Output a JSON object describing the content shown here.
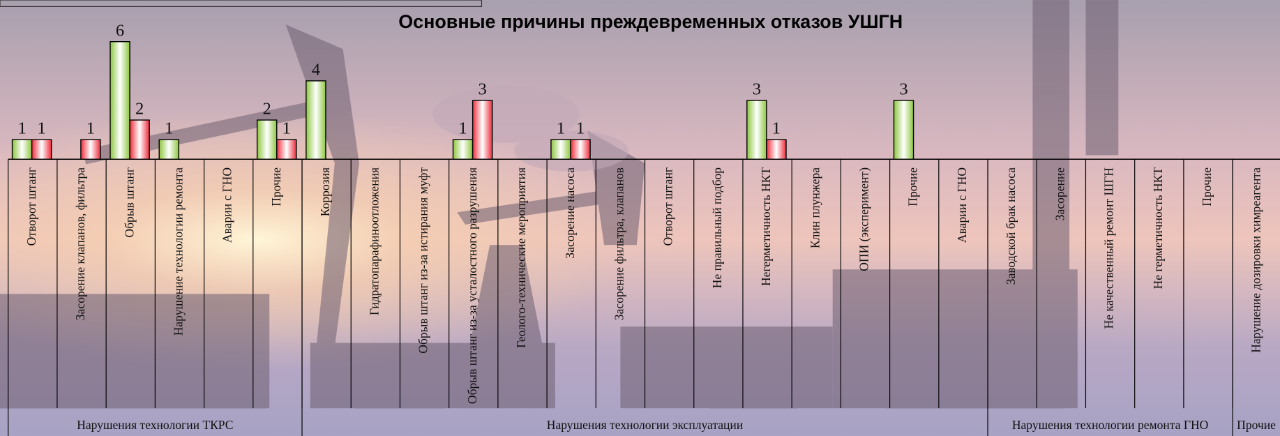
{
  "chart_data": {
    "type": "bar",
    "title": "Основные причины преждевременных отказов УШГН",
    "groups": [
      {
        "label": "Нарушения технологии ТКРС",
        "categories": [
          "Отворот штанг",
          "Засорение клапанов, фильтра",
          "Обрыв штанг",
          "Нарушение технологии ремонта",
          "Аварии с ГНО",
          "Прочие"
        ]
      },
      {
        "label": "Нарушения технологии эксплуатации",
        "categories": [
          "Коррозия",
          "Гидратопарафиноотложения",
          "Обрыв штанг из-за истирания муфт",
          "Обрыв штанг из-за усталостного разрушения",
          "Геолого-технические мероприятия",
          "Засорение насоса",
          "Засорение фильтра, клапанов",
          "Отворот штанг",
          "Не правильный подбор",
          "Негерметичность НКТ",
          "Клин плунжера",
          "ОПИ (эксперимент)",
          "Прочие",
          "Аварии с ГНО"
        ]
      },
      {
        "label": "Нарушения технологии ремонта ГНО",
        "categories": [
          "Заводской брак насоса",
          "Засорение",
          "Не качественный ремонт ШГН",
          "Не герметичность НКТ",
          "Прочие"
        ]
      },
      {
        "label": "Прочие",
        "categories": [
          "Нарушение дозировки химреагента"
        ]
      }
    ],
    "series": [
      {
        "color": "#8dc63f",
        "values": [
          1,
          null,
          6,
          1,
          null,
          2,
          4,
          null,
          null,
          1,
          null,
          1,
          null,
          null,
          null,
          3,
          null,
          null,
          3,
          null,
          null,
          null,
          null,
          null,
          null,
          null
        ]
      },
      {
        "color": "#ee2c3c",
        "values": [
          1,
          1,
          2,
          null,
          null,
          1,
          null,
          null,
          null,
          3,
          null,
          1,
          null,
          null,
          null,
          1,
          null,
          null,
          null,
          null,
          null,
          null,
          null,
          null,
          null,
          null
        ]
      }
    ],
    "ylim": [
      0,
      8
    ]
  }
}
